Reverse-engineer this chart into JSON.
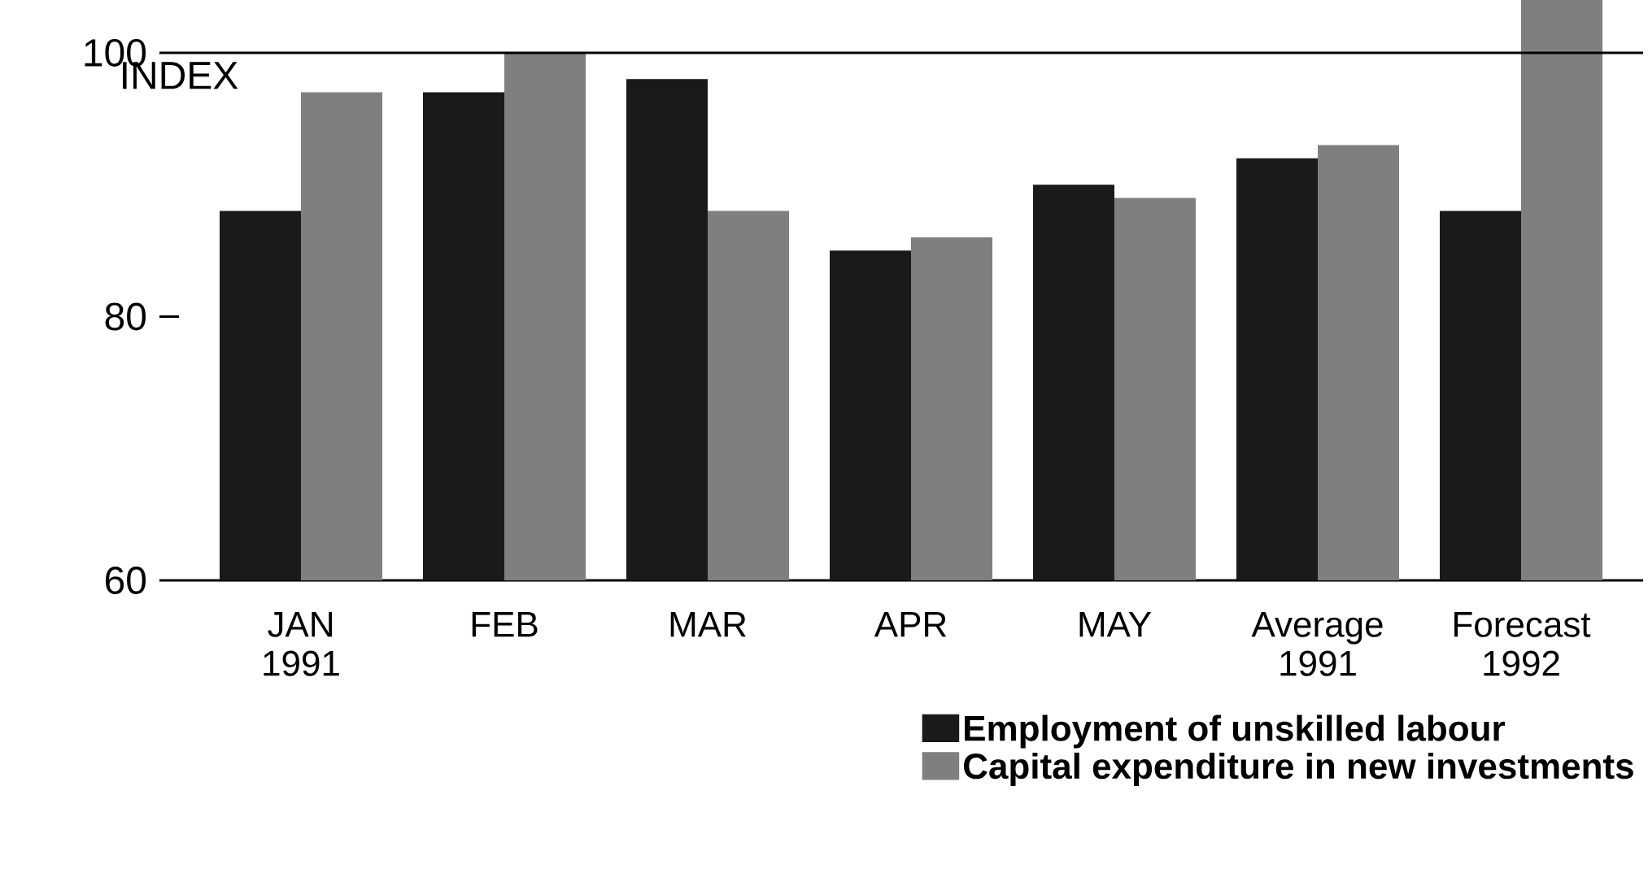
{
  "chart_data": {
    "type": "bar",
    "ylabel": "INDEX",
    "categories": [
      "JAN 1991",
      "FEB",
      "MAR",
      "APR",
      "MAY",
      "Average 1991",
      "Forecast 1992"
    ],
    "series": [
      {
        "name": "Employment of unskilled labour",
        "color": "#1a1a1a",
        "values": [
          88,
          97,
          98,
          85,
          90,
          92,
          88
        ]
      },
      {
        "name": "Capital expenditure in new investments",
        "color": "#7f7f7f",
        "values": [
          97,
          100,
          88,
          86,
          89,
          93,
          104
        ]
      }
    ],
    "ylim": [
      60,
      104
    ],
    "yticks": [
      60,
      80,
      100
    ],
    "ref_lines": [
      {
        "axis": "y",
        "value": 100,
        "label": null
      }
    ],
    "legend": "bottom right"
  }
}
